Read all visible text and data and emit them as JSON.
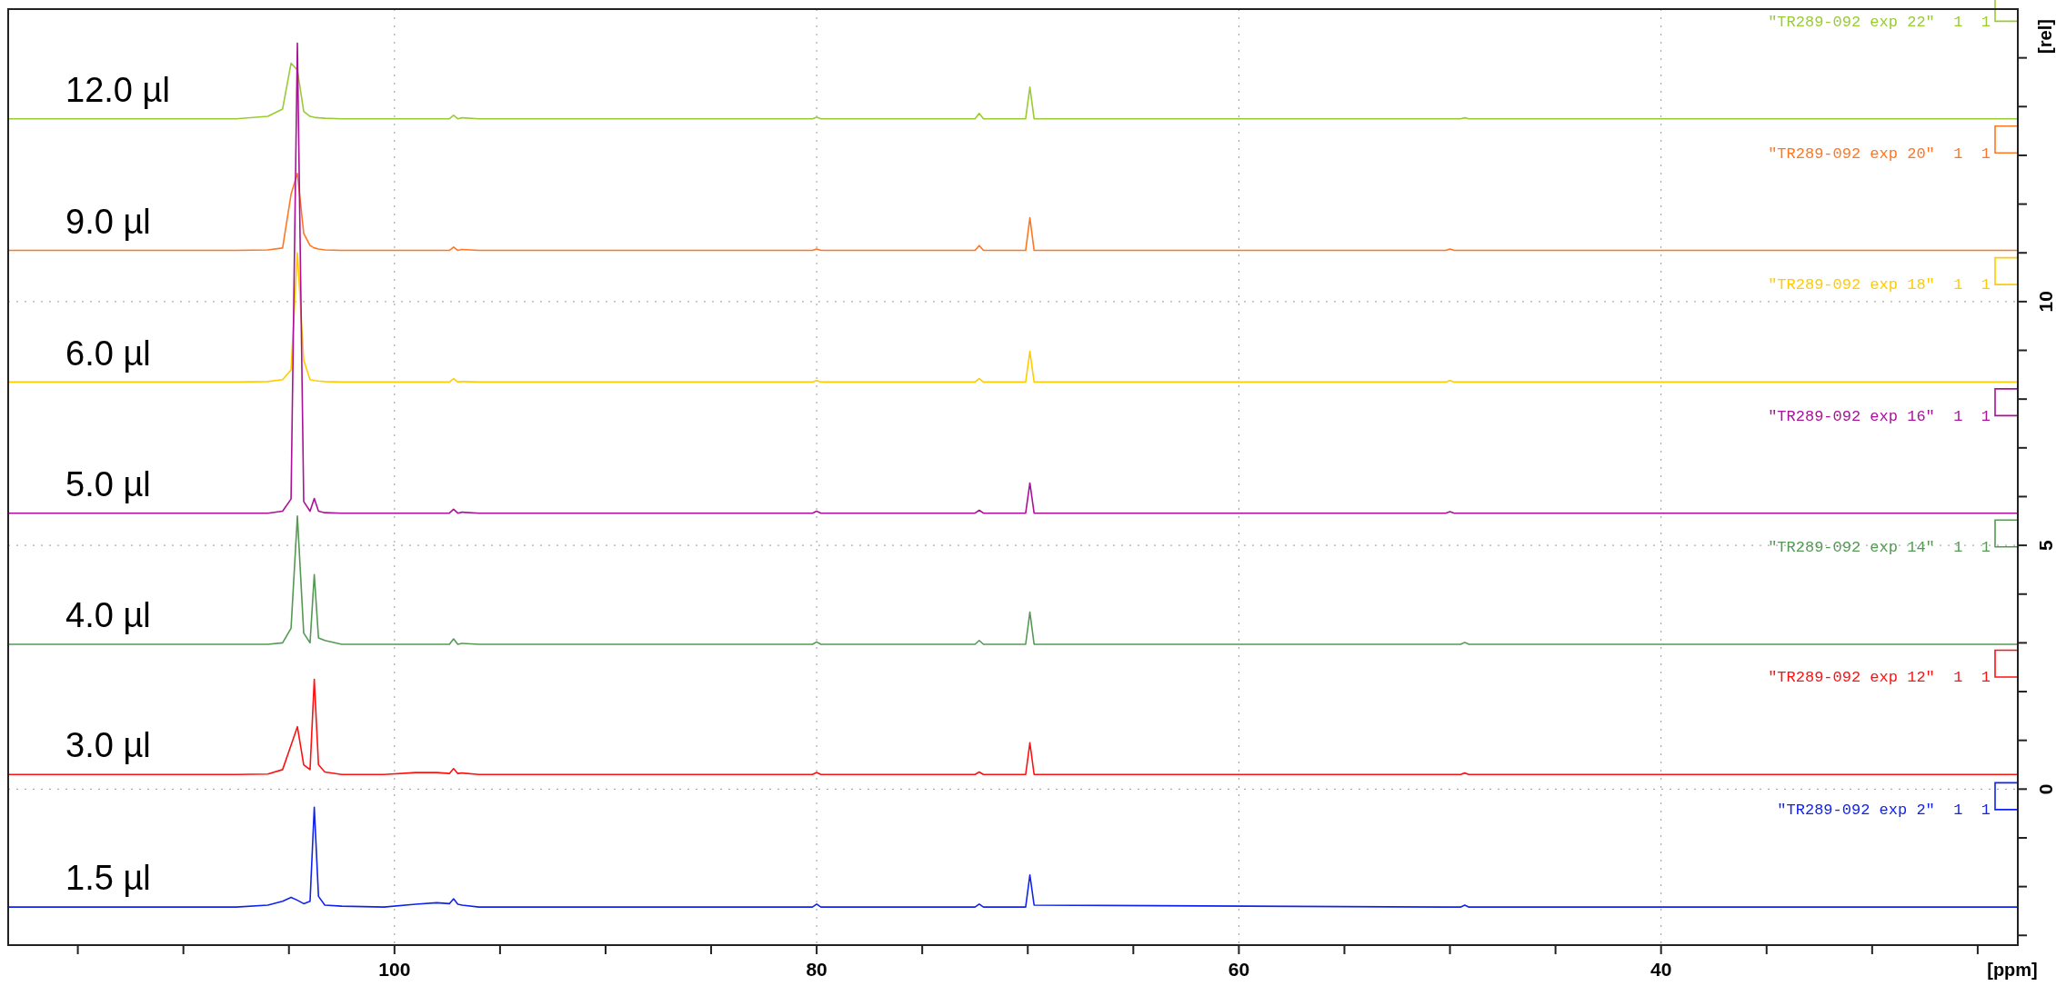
{
  "chart_data": {
    "type": "line",
    "xlabel": "[ppm]",
    "ylabel": "[rel]",
    "xlim": [
      118.3,
      23.1
    ],
    "ylim": [
      -3.2,
      16.0
    ],
    "xticks": [
      {
        "value": 115,
        "label": null
      },
      {
        "value": 110,
        "label": null
      },
      {
        "value": 105,
        "label": null
      },
      100,
      {
        "value": 95,
        "label": null
      },
      {
        "value": 90,
        "label": null
      },
      {
        "value": 85,
        "label": null
      },
      80,
      {
        "value": 75,
        "label": null
      },
      {
        "value": 70,
        "label": null
      },
      {
        "value": 65,
        "label": null
      },
      60,
      {
        "value": 55,
        "label": null
      },
      {
        "value": 50,
        "label": null
      },
      {
        "value": 45,
        "label": null
      },
      40,
      {
        "value": 35,
        "label": null
      },
      {
        "value": 30,
        "label": null
      },
      {
        "value": 25,
        "label": null
      }
    ],
    "yticks": [
      {
        "value": -3,
        "label": null
      },
      {
        "value": -2,
        "label": null
      },
      {
        "value": -1,
        "label": null
      },
      0,
      {
        "value": 1,
        "label": null
      },
      {
        "value": 2,
        "label": null
      },
      {
        "value": 3,
        "label": null
      },
      {
        "value": 4,
        "label": null
      },
      5,
      {
        "value": 6,
        "label": null
      },
      {
        "value": 7,
        "label": null
      },
      {
        "value": 8,
        "label": null
      },
      {
        "value": 9,
        "label": null
      },
      10,
      {
        "value": 11,
        "label": null
      },
      {
        "value": 12,
        "label": null
      },
      {
        "value": 13,
        "label": null
      },
      {
        "value": 14,
        "label": null
      },
      {
        "value": 15,
        "label": null
      }
    ],
    "grid": true,
    "line_style": "solid",
    "x": [
      118.3,
      107.5,
      106.0,
      105.3,
      104.9,
      104.6,
      104.3,
      104.0,
      103.8,
      103.6,
      103.3,
      102.5,
      100.5,
      99.0,
      98.0,
      97.4,
      97.2,
      97.0,
      96.8,
      96.0,
      80.2,
      80.0,
      79.8,
      72.5,
      72.3,
      72.1,
      70.1,
      69.9,
      69.7,
      50.2,
      50.0,
      49.8,
      49.5,
      49.3,
      49.1,
      23.1
    ],
    "series": [
      {
        "name": "12.0 µl",
        "color": "#99cc33",
        "values": [
          13.75,
          13.75,
          13.8,
          13.95,
          14.89,
          14.75,
          13.9,
          13.8,
          13.78,
          13.77,
          13.76,
          13.75,
          13.75,
          13.75,
          13.75,
          13.75,
          13.82,
          13.75,
          13.77,
          13.75,
          13.75,
          13.78,
          13.75,
          13.75,
          13.86,
          13.75,
          13.75,
          14.4,
          13.75,
          13.75,
          13.75,
          13.75,
          13.75,
          13.77,
          13.75,
          13.75
        ]
      },
      {
        "name": "9.0 µl",
        "color": "#ff7722",
        "values": [
          11.05,
          11.05,
          11.06,
          11.1,
          12.2,
          12.63,
          11.4,
          11.15,
          11.1,
          11.08,
          11.06,
          11.05,
          11.05,
          11.05,
          11.05,
          11.05,
          11.12,
          11.05,
          11.07,
          11.05,
          11.05,
          11.08,
          11.05,
          11.05,
          11.15,
          11.05,
          11.05,
          11.72,
          11.05,
          11.05,
          11.08,
          11.05,
          11.05,
          11.05,
          11.05,
          11.05
        ]
      },
      {
        "name": "6.0 µl",
        "color": "#ffcc00",
        "values": [
          8.35,
          8.35,
          8.36,
          8.4,
          8.6,
          11.0,
          8.8,
          8.4,
          8.38,
          8.37,
          8.36,
          8.35,
          8.35,
          8.35,
          8.35,
          8.35,
          8.42,
          8.35,
          8.36,
          8.35,
          8.35,
          8.38,
          8.35,
          8.35,
          8.42,
          8.35,
          8.35,
          8.98,
          8.35,
          8.35,
          8.38,
          8.35,
          8.35,
          8.35,
          8.35,
          8.35
        ]
      },
      {
        "name": "5.0 µl",
        "color": "#aa1199",
        "values": [
          5.66,
          5.66,
          5.66,
          5.7,
          5.95,
          15.3,
          5.9,
          5.7,
          5.96,
          5.7,
          5.67,
          5.66,
          5.66,
          5.66,
          5.66,
          5.66,
          5.74,
          5.66,
          5.68,
          5.66,
          5.66,
          5.7,
          5.66,
          5.66,
          5.72,
          5.66,
          5.66,
          6.28,
          5.66,
          5.66,
          5.69,
          5.66,
          5.66,
          5.66,
          5.66,
          5.66
        ]
      },
      {
        "name": "4.0 µl",
        "color": "#559955",
        "values": [
          2.97,
          2.97,
          2.97,
          3.0,
          3.3,
          5.6,
          3.2,
          3.0,
          4.4,
          3.1,
          3.05,
          2.97,
          2.97,
          2.97,
          2.97,
          2.97,
          3.08,
          2.97,
          2.99,
          2.97,
          2.97,
          3.02,
          2.97,
          2.97,
          3.05,
          2.97,
          2.97,
          3.63,
          2.97,
          2.97,
          2.97,
          2.97,
          2.97,
          3.01,
          2.97,
          2.97
        ]
      },
      {
        "name": "3.0 µl",
        "color": "#ff1111",
        "values": [
          0.3,
          0.3,
          0.31,
          0.4,
          0.9,
          1.28,
          0.5,
          0.4,
          2.25,
          0.5,
          0.35,
          0.3,
          0.3,
          0.34,
          0.34,
          0.32,
          0.42,
          0.32,
          0.33,
          0.3,
          0.3,
          0.34,
          0.3,
          0.3,
          0.35,
          0.3,
          0.3,
          0.95,
          0.3,
          0.3,
          0.3,
          0.3,
          0.3,
          0.33,
          0.3,
          0.3
        ]
      },
      {
        "name": "1.5 µl",
        "color": "#1122ee",
        "values": [
          -2.42,
          -2.42,
          -2.38,
          -2.3,
          -2.22,
          -2.28,
          -2.35,
          -2.3,
          -0.37,
          -2.2,
          -2.38,
          -2.4,
          -2.42,
          -2.36,
          -2.33,
          -2.35,
          -2.25,
          -2.36,
          -2.38,
          -2.42,
          -2.42,
          -2.36,
          -2.42,
          -2.42,
          -2.36,
          -2.42,
          -2.42,
          -1.76,
          -2.38,
          -2.42,
          -2.42,
          -2.42,
          -2.42,
          -2.38,
          -2.42,
          -2.42
        ]
      }
    ],
    "annotations": [
      "\"TR289-092 exp 22\"  1  1",
      "\"TR289-092 exp 20\"  1  1",
      "\"TR289-092 exp 18\"  1  1",
      "\"TR289-092 exp 16\"  1  1",
      "\"TR289-092 exp 14\"  1  1",
      "\"TR289-092 exp 12\"  1  1",
      "\"TR289-092 exp 2\"  1  1"
    ]
  }
}
